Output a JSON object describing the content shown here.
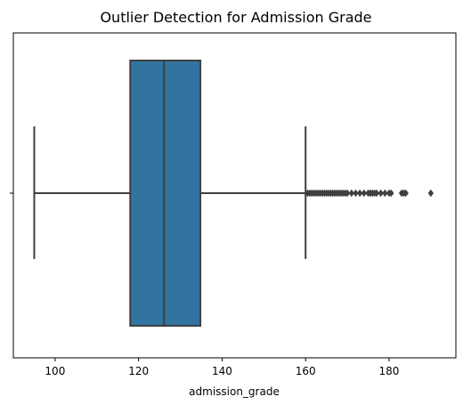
{
  "chart_data": {
    "type": "box",
    "title": "Outlier Detection for Admission Grade",
    "xlabel": "admission_grade",
    "ylabel": "",
    "xlim": [
      90,
      196
    ],
    "x_ticks": [
      100,
      120,
      140,
      160,
      180
    ],
    "grid": false,
    "colors": {
      "box_fill": "#3274a1",
      "line": "#3f3f3f"
    },
    "box": {
      "whisker_low": 95,
      "q1": 118,
      "median": 126.1,
      "q3": 134.8,
      "whisker_high": 160,
      "outliers": [
        160.5,
        161,
        161.5,
        162,
        162.5,
        163,
        163.5,
        164,
        164.5,
        165,
        165.5,
        166,
        166.5,
        167,
        167.5,
        168,
        168.5,
        169,
        169.5,
        170,
        171,
        172,
        173,
        174,
        175,
        175.5,
        176,
        176.5,
        177,
        178,
        179,
        180,
        180.5,
        183,
        183.5,
        184,
        190
      ]
    }
  }
}
